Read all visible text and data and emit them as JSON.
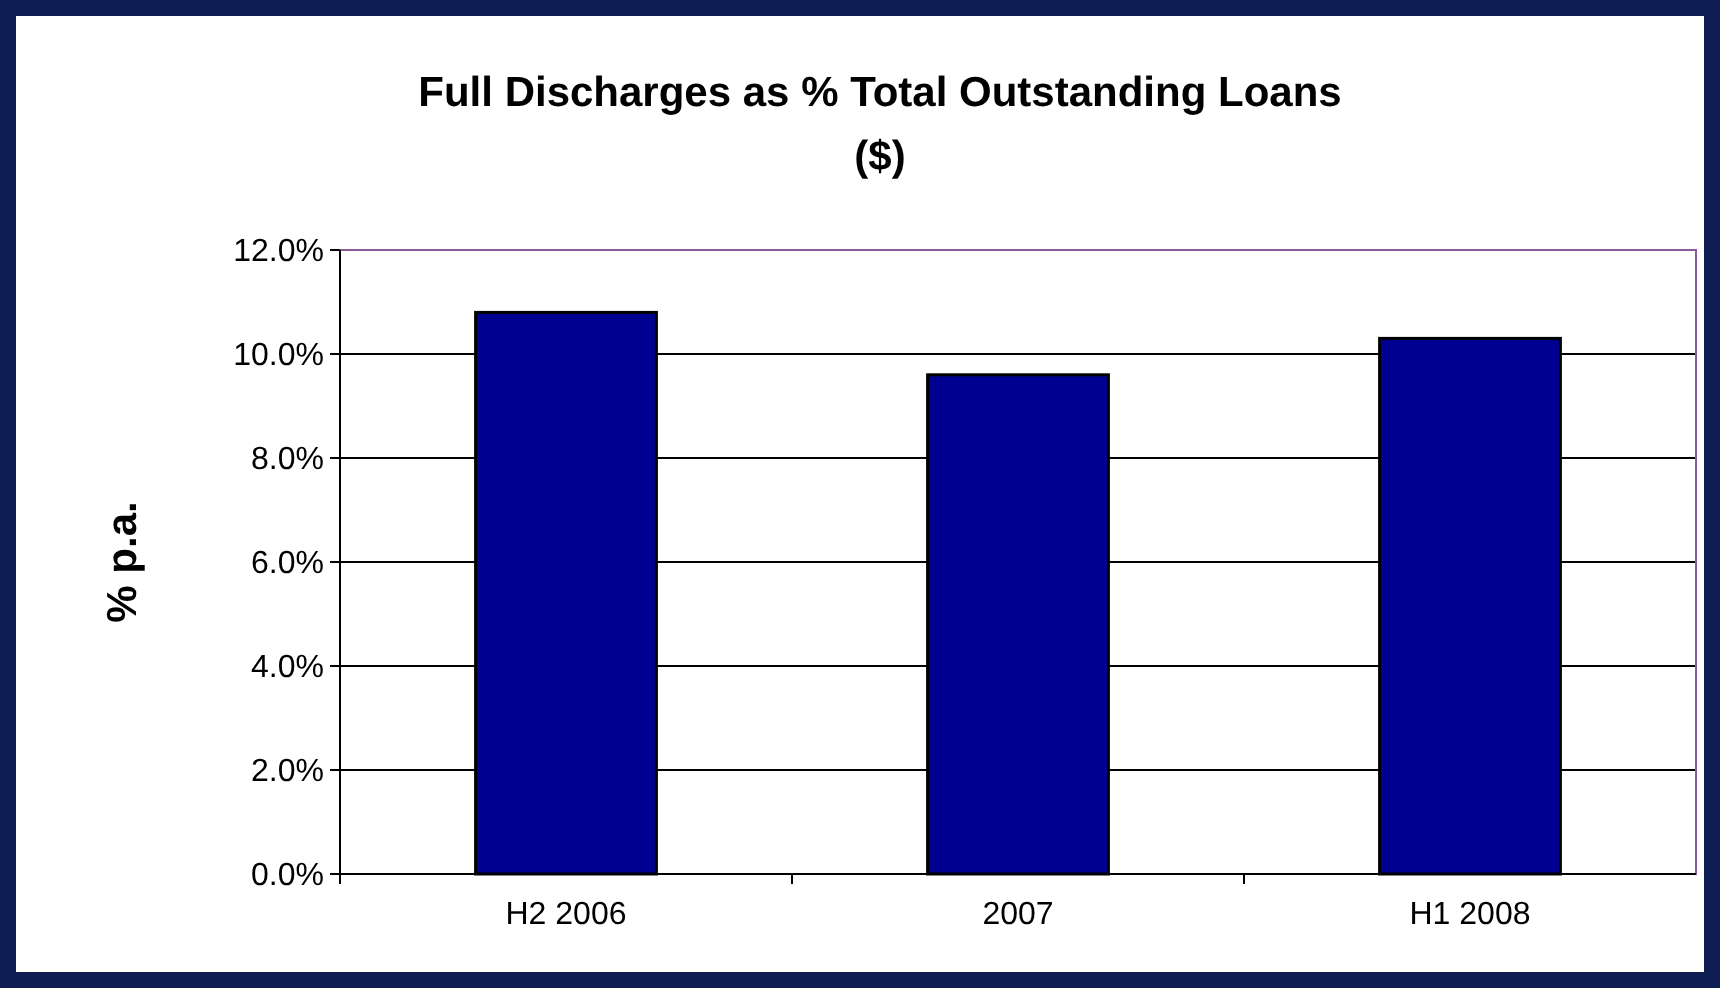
{
  "chart_data": {
    "type": "bar",
    "title": "Full Discharges as % Total Outstanding Loans ($)",
    "ylabel": "% p.a.",
    "categories": [
      "H2 2006",
      "2007",
      "H1 2008"
    ],
    "values": [
      10.8,
      9.6,
      10.3
    ],
    "color": "#000090",
    "ylim": [
      0,
      12
    ],
    "yticks": [
      {
        "value": 0,
        "label": "0.0%"
      },
      {
        "value": 2,
        "label": "2.0%"
      },
      {
        "value": 4,
        "label": "4.0%"
      },
      {
        "value": 6,
        "label": "6.0%"
      },
      {
        "value": 8,
        "label": "8.0%"
      },
      {
        "value": 10,
        "label": "10.0%"
      },
      {
        "value": 12,
        "label": "12.0%"
      }
    ],
    "grid": "y"
  }
}
